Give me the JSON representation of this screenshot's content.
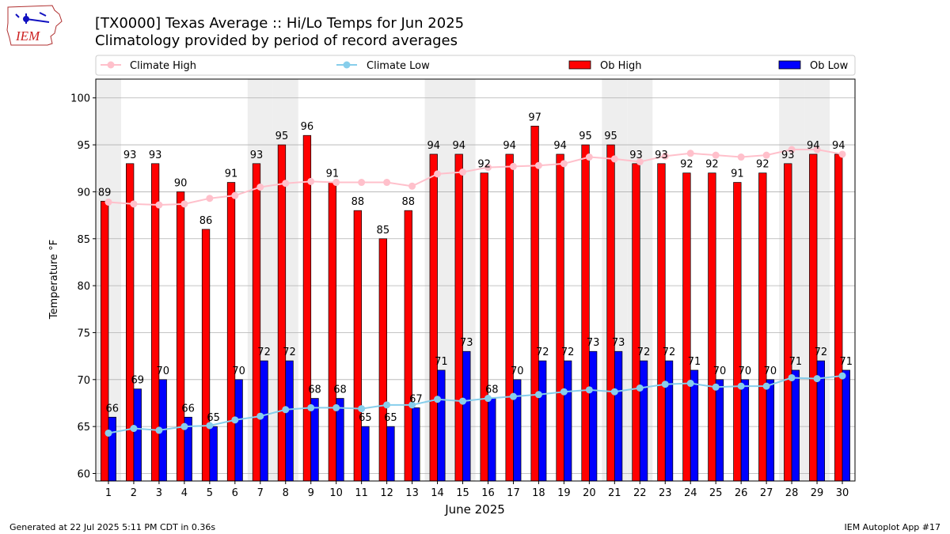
{
  "header": {
    "title": "[TX0000] Texas Average :: Hi/Lo Temps for Jun 2025",
    "subtitle": "Climatology provided by period of record averages",
    "logo_text": "IEM"
  },
  "footer": {
    "generated": "Generated at 22 Jul 2025 5:11 PM CDT in 0.36s",
    "app": "IEM Autoplot App #17"
  },
  "colors": {
    "ob_high": "#ff0000",
    "ob_low": "#0000ff",
    "climate_high": "#ffc0cb",
    "climate_low": "#87ceeb",
    "weekend_band": "#eeeeee",
    "grid": "#b0b0b0"
  },
  "chart_data": {
    "type": "bar",
    "title": "[TX0000] Texas Average :: Hi/Lo Temps for Jun 2025",
    "subtitle": "Climatology provided by period of record averages",
    "xlabel": "June 2025",
    "ylabel": "Temperature °F",
    "ylim": [
      59.2,
      102
    ],
    "yticks": [
      60,
      65,
      70,
      75,
      80,
      85,
      90,
      95,
      100
    ],
    "grid": true,
    "legend_position": "top",
    "categories": [
      "1",
      "2",
      "3",
      "4",
      "5",
      "6",
      "7",
      "8",
      "9",
      "10",
      "11",
      "12",
      "13",
      "14",
      "15",
      "16",
      "17",
      "18",
      "19",
      "20",
      "21",
      "22",
      "23",
      "24",
      "25",
      "26",
      "27",
      "28",
      "29",
      "30"
    ],
    "shaded_days": [
      1,
      7,
      8,
      14,
      15,
      21,
      22,
      28,
      29
    ],
    "series": [
      {
        "name": "Ob High",
        "kind": "bar",
        "values": [
          89,
          93,
          93,
          90,
          86,
          91,
          93,
          95,
          96,
          91,
          88,
          85,
          88,
          94,
          94,
          92,
          94,
          97,
          94,
          95,
          95,
          93,
          93,
          92,
          92,
          91,
          92,
          93,
          94,
          94
        ]
      },
      {
        "name": "Ob Low",
        "kind": "bar",
        "values": [
          66,
          69,
          70,
          66,
          65,
          70,
          72,
          72,
          68,
          68,
          65,
          65,
          67,
          71,
          73,
          68,
          70,
          72,
          72,
          73,
          73,
          72,
          72,
          71,
          70,
          70,
          70,
          71,
          72,
          71
        ]
      },
      {
        "name": "Climate High",
        "kind": "line",
        "values": [
          88.9,
          88.7,
          88.6,
          88.7,
          89.3,
          89.6,
          90.5,
          90.9,
          91.1,
          91.0,
          91.0,
          91.0,
          90.6,
          91.9,
          92.1,
          92.6,
          92.7,
          92.8,
          93.0,
          93.7,
          93.5,
          93.2,
          93.8,
          94.1,
          93.9,
          93.7,
          93.9,
          94.5,
          94.5,
          94.0
        ]
      },
      {
        "name": "Climate Low",
        "kind": "line",
        "values": [
          64.3,
          64.8,
          64.6,
          65.0,
          65.1,
          65.7,
          66.1,
          66.8,
          67.0,
          67.0,
          66.9,
          67.3,
          67.3,
          67.9,
          67.7,
          68.0,
          68.2,
          68.4,
          68.7,
          68.9,
          68.7,
          69.1,
          69.5,
          69.6,
          69.2,
          69.3,
          69.3,
          70.2,
          70.1,
          70.4
        ]
      }
    ]
  }
}
